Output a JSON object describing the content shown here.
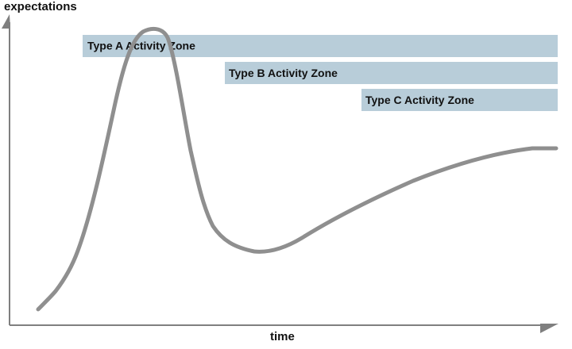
{
  "y_axis_label": "expectations",
  "x_axis_label": "time",
  "zones": [
    {
      "label": "Type A Activity Zone"
    },
    {
      "label": "Type B Activity Zone"
    },
    {
      "label": "Type C Activity Zone"
    }
  ],
  "colors": {
    "zone_fill": "#b8cdd9",
    "curve": "#8f8f8f",
    "axis": "#7f7f7f",
    "text": "#111111"
  }
}
